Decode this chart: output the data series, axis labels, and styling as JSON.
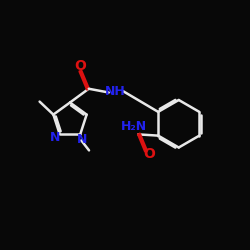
{
  "bg_color": "#080808",
  "bond_color": "#e8e8e8",
  "n_color": "#2222ee",
  "o_color": "#dd1111",
  "lw": 1.8,
  "fs": 9.0,
  "fig_size": [
    2.5,
    2.5
  ],
  "dpi": 100,
  "xlim": [
    0,
    10
  ],
  "ylim": [
    1,
    9
  ]
}
